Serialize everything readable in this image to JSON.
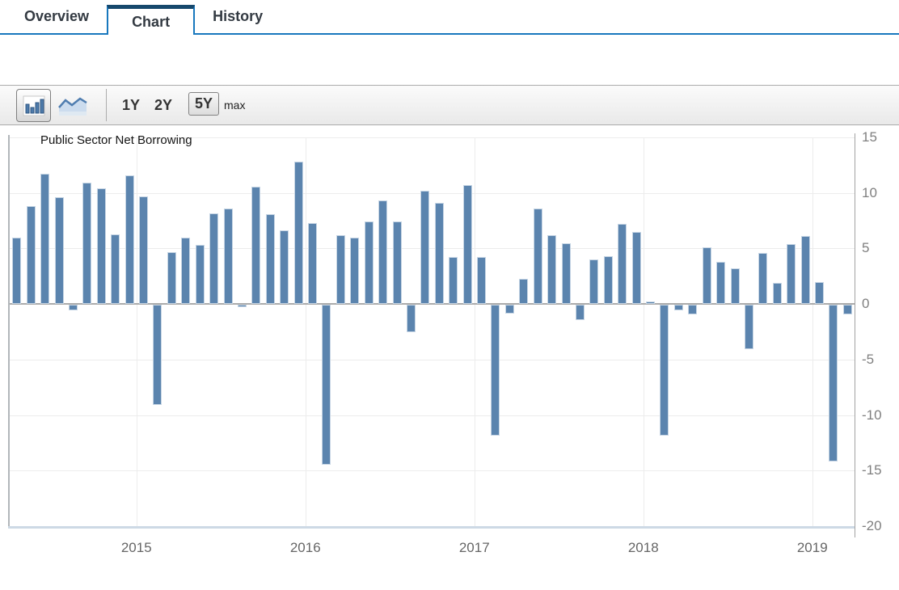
{
  "tabs": [
    {
      "label": "Overview",
      "active": false
    },
    {
      "label": "Chart",
      "active": true
    },
    {
      "label": "History",
      "active": false
    }
  ],
  "toolbar": {
    "chart_type_buttons": [
      {
        "name": "bar-chart",
        "selected": true
      },
      {
        "name": "line-chart",
        "selected": false
      }
    ],
    "range_buttons": [
      {
        "label": "1Y",
        "selected": false
      },
      {
        "label": "2Y",
        "selected": false
      },
      {
        "label": "5Y",
        "selected": true
      },
      {
        "label": "max",
        "selected": false
      }
    ]
  },
  "colors": {
    "bar_fill": "#5b84ae",
    "bar_border": "#c6d5e4",
    "accent_blue": "#1878be",
    "active_tab_top": "#16486c",
    "grid": "#ececec",
    "zero_line": "#ababab"
  },
  "chart_data": {
    "type": "bar",
    "title": "Public Sector Net Borrowing",
    "ylabel": "",
    "xlabel": "",
    "ylim": [
      -20,
      15
    ],
    "yticks": [
      15,
      10,
      5,
      0,
      -5,
      -10,
      -15,
      -20
    ],
    "grid": true,
    "y_axis_position": "right",
    "year_ticks": [
      {
        "label": "2015",
        "index": 9
      },
      {
        "label": "2016",
        "index": 21
      },
      {
        "label": "2017",
        "index": 33
      },
      {
        "label": "2018",
        "index": 45
      },
      {
        "label": "2019",
        "index": 57
      }
    ],
    "x": [
      "2014-04",
      "2014-05",
      "2014-06",
      "2014-07",
      "2014-08",
      "2014-09",
      "2014-10",
      "2014-11",
      "2014-12",
      "2015-01",
      "2015-02",
      "2015-03",
      "2015-04",
      "2015-05",
      "2015-06",
      "2015-07",
      "2015-08",
      "2015-09",
      "2015-10",
      "2015-11",
      "2015-12",
      "2016-01",
      "2016-02",
      "2016-03",
      "2016-04",
      "2016-05",
      "2016-06",
      "2016-07",
      "2016-08",
      "2016-09",
      "2016-10",
      "2016-11",
      "2016-12",
      "2017-01",
      "2017-02",
      "2017-03",
      "2017-04",
      "2017-05",
      "2017-06",
      "2017-07",
      "2017-08",
      "2017-09",
      "2017-10",
      "2017-11",
      "2017-12",
      "2018-01",
      "2018-02",
      "2018-03",
      "2018-04",
      "2018-05",
      "2018-06",
      "2018-07",
      "2018-08",
      "2018-09",
      "2018-10",
      "2018-11",
      "2018-12",
      "2019-01",
      "2019-02",
      "2019-03"
    ],
    "values": [
      6.0,
      8.8,
      11.7,
      9.6,
      -0.5,
      10.9,
      10.4,
      6.3,
      11.6,
      9.7,
      -9.0,
      4.7,
      6.0,
      5.3,
      8.2,
      8.6,
      -0.2,
      10.6,
      8.1,
      6.6,
      12.8,
      7.3,
      -14.4,
      6.2,
      6.0,
      7.4,
      9.3,
      7.4,
      -2.5,
      10.2,
      9.1,
      4.2,
      10.7,
      4.2,
      -11.8,
      -0.8,
      2.3,
      8.6,
      6.2,
      5.5,
      -1.4,
      4.0,
      4.3,
      7.2,
      6.5,
      0.2,
      -11.8,
      -0.5,
      -0.9,
      5.1,
      3.8,
      3.2,
      -4.0,
      4.6,
      1.9,
      5.4,
      6.1,
      2.0,
      -14.1,
      -0.9
    ]
  }
}
